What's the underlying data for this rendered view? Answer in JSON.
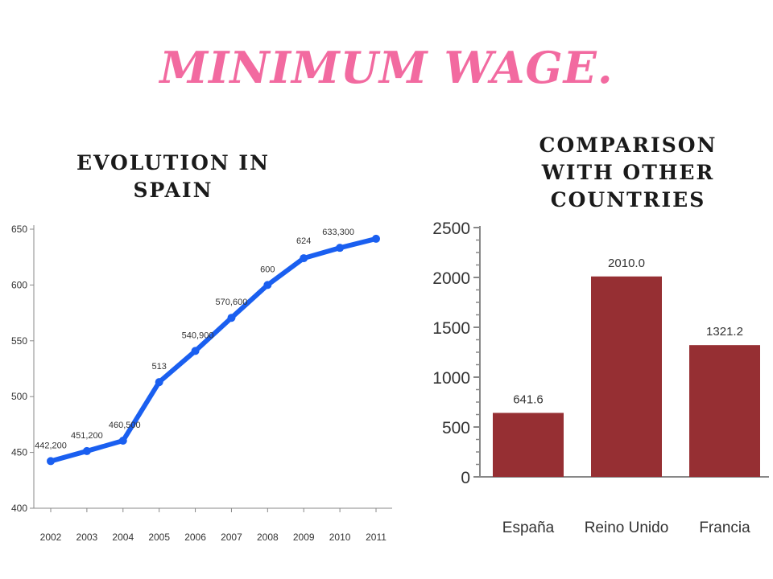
{
  "title": "MINIMUM WAGE.",
  "colors": {
    "title": "#f26aa0",
    "line": "#1a5ff0",
    "bar": "#962f33",
    "axis": "#888888"
  },
  "chart_data": [
    {
      "type": "line",
      "title": "EVOLUTION IN SPAIN",
      "x": [
        "2002",
        "2003",
        "2004",
        "2005",
        "2006",
        "2007",
        "2008",
        "2009",
        "2010",
        "2011"
      ],
      "series": [
        {
          "values": [
            442.2,
            451.2,
            460.5,
            513,
            540.9,
            570.6,
            600,
            624,
            633.3,
            641.4
          ]
        }
      ],
      "data_labels": [
        "442,200",
        "451,200",
        "460,500",
        "513",
        "540,900",
        "570,600",
        "600",
        "624",
        "633,300",
        ""
      ],
      "yticks": [
        "400",
        "450",
        "500",
        "550",
        "600",
        "650"
      ],
      "ylim": [
        400,
        650
      ],
      "grid": false
    },
    {
      "type": "bar",
      "title": "COMPARISON WITH OTHER COUNTRIES",
      "categories": [
        "España",
        "Reino Unido",
        "Francia"
      ],
      "values": [
        641.6,
        2010.0,
        1321.2
      ],
      "data_labels": [
        "641.6",
        "2010.0",
        "1321.2"
      ],
      "yticks": [
        "0",
        "500",
        "1000",
        "1500",
        "2000",
        "2500"
      ],
      "ylim": [
        0,
        2500
      ],
      "grid": false
    }
  ]
}
